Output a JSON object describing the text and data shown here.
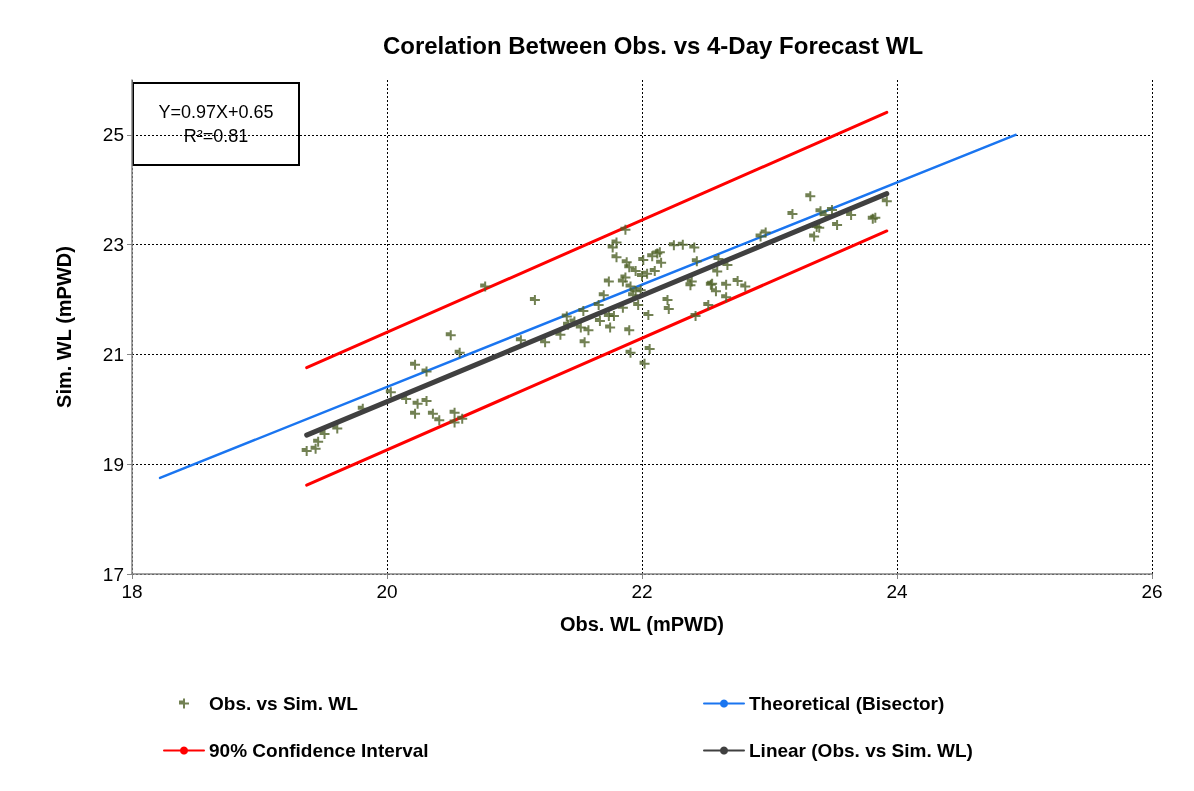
{
  "chart_data": {
    "type": "scatter",
    "title": "Corelation Between Obs. vs 4-Day Forecast WL",
    "xlabel": "Obs. WL (mPWD)",
    "ylabel": "Sim. WL (mPWD)",
    "annotations": [
      "Y=0.97X+0.65",
      "R²=0.81"
    ],
    "xlim": [
      18,
      26
    ],
    "xticks": [
      18,
      20,
      22,
      24,
      26
    ],
    "ylim": [
      17,
      26
    ],
    "yticks": [
      17,
      19,
      21,
      23,
      25
    ],
    "grid": true,
    "legend": "bottom",
    "line_style": "solid",
    "series": [
      {
        "name": "Obs. vs Sim. WL",
        "marker": "cross",
        "color": "#4f6228",
        "x": [
          19.37,
          19.44,
          19.46,
          19.51,
          19.61,
          19.81,
          20.03,
          20.15,
          20.22,
          20.31,
          20.22,
          20.24,
          20.31,
          20.36,
          20.41,
          20.53,
          20.53,
          20.59,
          20.5,
          20.57,
          20.77,
          21.05,
          21.16,
          21.24,
          21.36,
          21.41,
          21.42,
          21.47,
          21.52,
          21.54,
          21.55,
          21.58,
          21.66,
          21.67,
          21.7,
          21.74,
          21.74,
          21.75,
          21.77,
          21.78,
          21.8,
          21.8,
          21.85,
          21.85,
          21.87,
          21.87,
          21.88,
          21.9,
          21.9,
          21.91,
          21.91,
          21.93,
          21.95,
          21.95,
          21.97,
          21.99,
          22.0,
          22.01,
          22.02,
          22.04,
          22.05,
          22.06,
          22.08,
          22.1,
          22.12,
          22.14,
          22.15,
          22.2,
          22.21,
          22.25,
          22.32,
          22.38,
          22.39,
          22.41,
          22.42,
          22.43,
          22.52,
          22.54,
          22.55,
          22.58,
          22.59,
          22.6,
          22.66,
          22.66,
          22.67,
          22.75,
          22.81,
          22.93,
          22.97,
          23.18,
          23.32,
          23.4,
          23.44,
          23.49,
          23.39,
          23.37,
          23.35,
          23.53,
          23.64,
          23.81,
          23.83,
          23.92
        ],
        "values": [
          19.24,
          19.28,
          19.41,
          19.55,
          19.65,
          20.01,
          20.31,
          20.19,
          20.81,
          20.69,
          19.92,
          20.1,
          20.15,
          19.92,
          19.8,
          19.94,
          19.76,
          19.83,
          21.35,
          21.03,
          22.24,
          21.26,
          21.99,
          21.22,
          21.36,
          21.69,
          21.54,
          21.6,
          21.49,
          21.79,
          21.22,
          21.44,
          21.9,
          21.61,
          22.08,
          22.33,
          21.7,
          21.49,
          22.95,
          21.7,
          22.77,
          23.04,
          21.85,
          22.33,
          22.4,
          23.27,
          22.68,
          21.44,
          22.59,
          22.24,
          21.03,
          22.08,
          22.52,
          22.15,
          21.9,
          22.17,
          22.43,
          22.72,
          20.83,
          22.47,
          21.72,
          21.1,
          22.79,
          22.52,
          22.84,
          22.86,
          22.67,
          21.99,
          21.83,
          22.99,
          23.0,
          22.26,
          22.33,
          22.95,
          21.7,
          22.7,
          21.9,
          22.27,
          22.29,
          22.15,
          22.51,
          22.74,
          22.27,
          22.04,
          22.63,
          22.34,
          22.24,
          23.15,
          23.22,
          23.56,
          23.88,
          23.61,
          23.54,
          23.63,
          23.31,
          23.32,
          23.15,
          23.36,
          23.54,
          23.47,
          23.49,
          23.79
        ]
      },
      {
        "name": "Theoretical (Bisector)",
        "type": "line",
        "marker": "none",
        "color": "#1a75f0",
        "x": [
          18.22,
          24.93
        ],
        "values": [
          18.75,
          25.0
        ]
      },
      {
        "name": "90% Confidence Interval",
        "type": "line",
        "marker": "none",
        "color": "#ff0000",
        "x": [
          19.37,
          23.92
        ],
        "values": [
          20.76,
          25.41
        ]
      },
      {
        "type": "line",
        "marker": "none",
        "color": "#ff0000",
        "x": [
          19.37,
          23.92
        ],
        "values": [
          18.62,
          23.25
        ]
      },
      {
        "name": "Linear (Obs. vs Sim. WL)",
        "type": "line",
        "marker": "none",
        "color": "#404040",
        "x": [
          19.37,
          23.92
        ],
        "values": [
          19.53,
          23.93
        ]
      }
    ]
  }
}
